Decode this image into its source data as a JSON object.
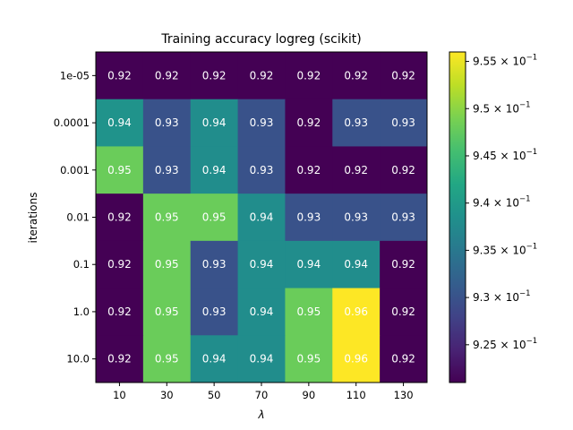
{
  "chart_data": {
    "type": "heatmap",
    "title": "Training accuracy logreg (scikit)",
    "xlabel": "λ",
    "ylabel": "iterations",
    "x_categories": [
      "10",
      "30",
      "50",
      "70",
      "90",
      "110",
      "130"
    ],
    "y_categories": [
      "1e-05",
      "0.0001",
      "0.001",
      "0.01",
      "0.1",
      "1.0",
      "10.0"
    ],
    "values": [
      [
        0.921,
        0.921,
        0.921,
        0.921,
        0.921,
        0.921,
        0.921
      ],
      [
        0.939,
        0.93,
        0.938,
        0.93,
        0.921,
        0.93,
        0.93
      ],
      [
        0.948,
        0.93,
        0.938,
        0.93,
        0.921,
        0.921,
        0.921
      ],
      [
        0.921,
        0.948,
        0.948,
        0.938,
        0.93,
        0.93,
        0.93
      ],
      [
        0.921,
        0.948,
        0.93,
        0.938,
        0.938,
        0.938,
        0.921
      ],
      [
        0.921,
        0.948,
        0.93,
        0.938,
        0.948,
        0.956,
        0.921
      ],
      [
        0.921,
        0.948,
        0.938,
        0.938,
        0.948,
        0.956,
        0.921
      ]
    ],
    "labels": [
      [
        "0.92",
        "0.92",
        "0.92",
        "0.92",
        "0.92",
        "0.92",
        "0.92"
      ],
      [
        "0.94",
        "0.93",
        "0.94",
        "0.93",
        "0.92",
        "0.93",
        "0.93"
      ],
      [
        "0.95",
        "0.93",
        "0.94",
        "0.93",
        "0.92",
        "0.92",
        "0.92"
      ],
      [
        "0.92",
        "0.95",
        "0.95",
        "0.94",
        "0.93",
        "0.93",
        "0.93"
      ],
      [
        "0.92",
        "0.95",
        "0.93",
        "0.94",
        "0.94",
        "0.94",
        "0.92"
      ],
      [
        "0.92",
        "0.95",
        "0.93",
        "0.94",
        "0.95",
        "0.96",
        "0.92"
      ],
      [
        "0.92",
        "0.95",
        "0.94",
        "0.94",
        "0.95",
        "0.96",
        "0.92"
      ]
    ],
    "colormap": "viridis",
    "colorbar": {
      "range": [
        0.921,
        0.956
      ],
      "ticks": [
        {
          "value": 0.925,
          "mantissa": "9.25",
          "exponent": "−1"
        },
        {
          "value": 0.93,
          "mantissa": "9.3",
          "exponent": "−1"
        },
        {
          "value": 0.935,
          "mantissa": "9.35",
          "exponent": "−1"
        },
        {
          "value": 0.94,
          "mantissa": "9.4",
          "exponent": "−1"
        },
        {
          "value": 0.945,
          "mantissa": "9.45",
          "exponent": "−1"
        },
        {
          "value": 0.95,
          "mantissa": "9.5",
          "exponent": "−1"
        },
        {
          "value": 0.955,
          "mantissa": "9.55",
          "exponent": "−1"
        }
      ]
    },
    "grid": false,
    "legend": "colorbar-right"
  }
}
